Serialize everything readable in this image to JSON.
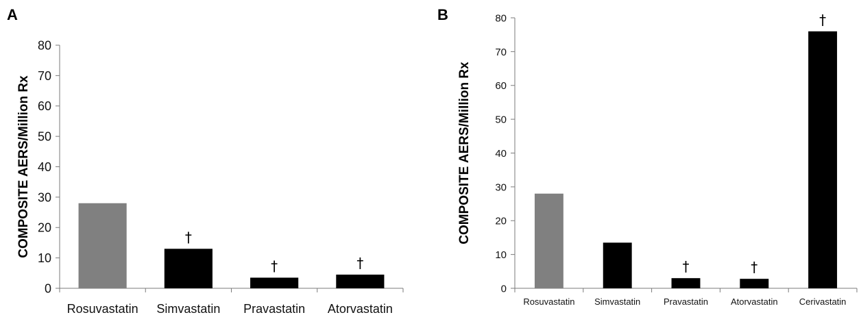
{
  "chart_data": [
    {
      "type": "bar",
      "panel_label": "A",
      "ylabel": "COMPOSITE AERS/Million Rx",
      "xlabel": "",
      "ylim": [
        0,
        80
      ],
      "yticks": [
        0,
        10,
        20,
        30,
        40,
        50,
        60,
        70,
        80
      ],
      "grid": false,
      "categories": [
        "Rosuvastatin",
        "Simvastatin",
        "Pravastatin",
        "Atorvastatin"
      ],
      "values": [
        28,
        13,
        3.5,
        4.5
      ],
      "bar_colors": [
        "#808080",
        "#000000",
        "#000000",
        "#000000"
      ],
      "markers": [
        "",
        "†",
        "†",
        "†"
      ]
    },
    {
      "type": "bar",
      "panel_label": "B",
      "ylabel": "COMPOSITE AERS/Million Rx",
      "xlabel": "",
      "ylim": [
        0,
        80
      ],
      "yticks": [
        0,
        10,
        20,
        30,
        40,
        50,
        60,
        70,
        80
      ],
      "grid": false,
      "categories": [
        "Rosuvastatin",
        "Simvastatin",
        "Pravastatin",
        "Atorvastatin",
        "Cerivastatin"
      ],
      "values": [
        28,
        13.5,
        3,
        2.8,
        76
      ],
      "bar_colors": [
        "#808080",
        "#000000",
        "#000000",
        "#000000",
        "#000000"
      ],
      "markers": [
        "",
        "",
        "†",
        "†",
        "†"
      ]
    }
  ]
}
